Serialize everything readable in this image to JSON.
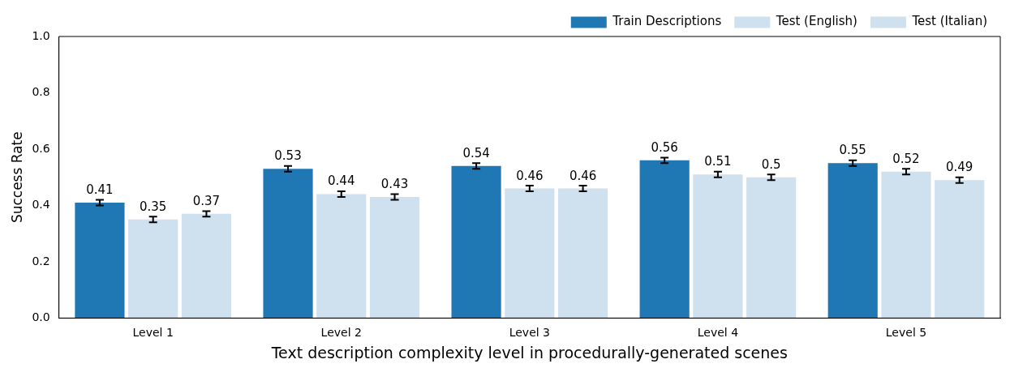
{
  "chart_data": {
    "type": "bar",
    "xlabel": "Text description complexity level in procedurally-generated scenes",
    "ylabel": "Success Rate",
    "categories": [
      "Level 1",
      "Level 2",
      "Level 3",
      "Level 4",
      "Level 5"
    ],
    "series": [
      {
        "name": "Train Descriptions",
        "color": "#1f77b4",
        "values": [
          0.41,
          0.53,
          0.54,
          0.56,
          0.55
        ],
        "errors": [
          0.01,
          0.01,
          0.01,
          0.01,
          0.01
        ]
      },
      {
        "name": "Test (English)",
        "color": "#cfe0ee",
        "values": [
          0.35,
          0.44,
          0.46,
          0.51,
          0.52
        ],
        "errors": [
          0.01,
          0.01,
          0.01,
          0.01,
          0.01
        ]
      },
      {
        "name": "Test (Italian)",
        "color": "#cfe0ee",
        "values": [
          0.37,
          0.43,
          0.46,
          0.5,
          0.49
        ],
        "errors": [
          0.01,
          0.01,
          0.01,
          0.01,
          0.01
        ]
      }
    ],
    "ylim": [
      0,
      1
    ],
    "yticks": [
      {
        "value": 0,
        "label": "0.0"
      },
      {
        "value": 0.2,
        "label": "0.2"
      },
      {
        "value": 0.4,
        "label": "0.4"
      },
      {
        "value": 0.6,
        "label": "0.6"
      },
      {
        "value": 0.8,
        "label": "0.8"
      },
      {
        "value": 1,
        "label": "1.0"
      }
    ],
    "data_labels": true,
    "legend": "top right",
    "grid": false
  }
}
